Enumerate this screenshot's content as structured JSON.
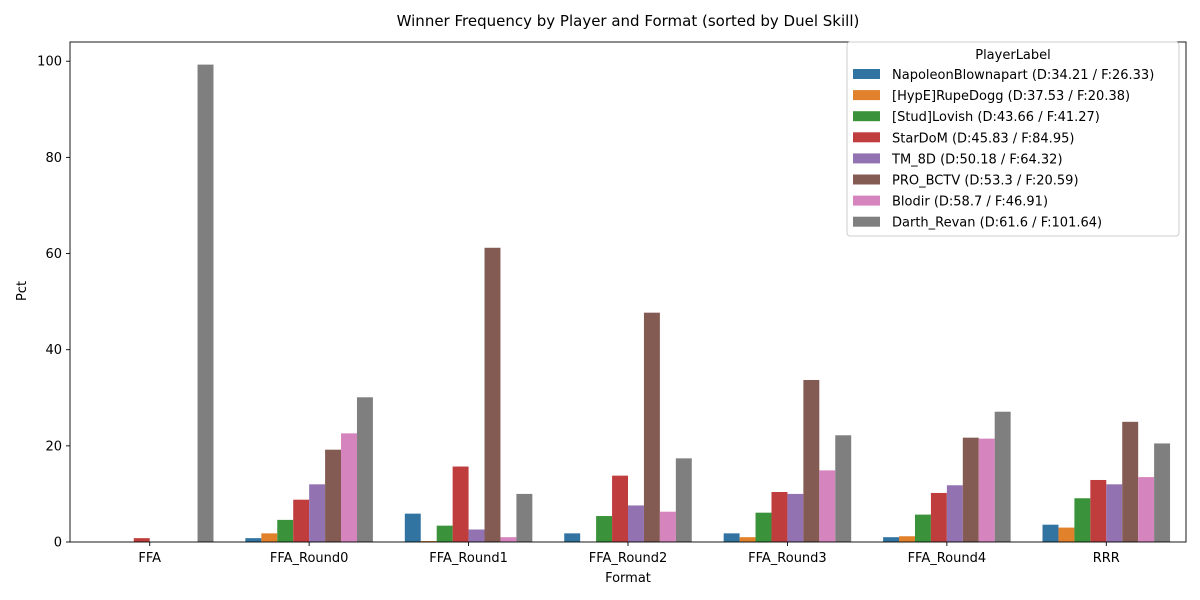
{
  "chart_data": {
    "type": "bar",
    "title": "Winner Frequency by Player and Format (sorted by Duel Skill)",
    "xlabel": "Format",
    "ylabel": "Pct",
    "ylim": [
      0,
      104
    ],
    "yticks": [
      0,
      20,
      40,
      60,
      80,
      100
    ],
    "grid": false,
    "legend_title": "PlayerLabel",
    "legend_position": "top-right",
    "categories": [
      "FFA",
      "FFA_Round0",
      "FFA_Round1",
      "FFA_Round2",
      "FFA_Round3",
      "FFA_Round4",
      "RRR"
    ],
    "series": [
      {
        "name": "NapoleonBlownapart (D:34.21 / F:26.33)",
        "color": "#3274a1",
        "values": [
          0,
          0.8,
          5.9,
          1.8,
          1.8,
          1.0,
          3.6
        ]
      },
      {
        "name": "[HypE]RupeDogg (D:37.53 / F:20.38)",
        "color": "#e1812c",
        "values": [
          0,
          1.8,
          0.2,
          0,
          1.0,
          1.2,
          3.0
        ]
      },
      {
        "name": "[Stud]Lovish (D:43.66 / F:41.27)",
        "color": "#3a923a",
        "values": [
          0,
          4.6,
          3.4,
          5.4,
          6.1,
          5.7,
          9.1
        ]
      },
      {
        "name": "StarDoM (D:45.83 / F:84.95)",
        "color": "#c03d3e",
        "values": [
          0.8,
          8.8,
          15.7,
          13.8,
          10.4,
          10.2,
          12.9
        ]
      },
      {
        "name": "TM_8D (D:50.18 / F:64.32)",
        "color": "#9372b2",
        "values": [
          0,
          12.0,
          2.6,
          7.6,
          10.0,
          11.8,
          12.0
        ]
      },
      {
        "name": "PRO_BCTV (D:53.3 / F:20.59)",
        "color": "#845b53",
        "values": [
          0,
          19.2,
          61.2,
          47.7,
          33.7,
          21.7,
          25.0
        ]
      },
      {
        "name": "Blodir (D:58.7 / F:46.91)",
        "color": "#d684bd",
        "values": [
          0,
          22.6,
          1.0,
          6.3,
          14.9,
          21.5,
          13.5
        ]
      },
      {
        "name": "Darth_Revan (D:61.6 / F:101.64)",
        "color": "#7f7f7f",
        "values": [
          99.3,
          30.1,
          10.0,
          17.4,
          22.2,
          27.1,
          20.5
        ]
      }
    ]
  }
}
